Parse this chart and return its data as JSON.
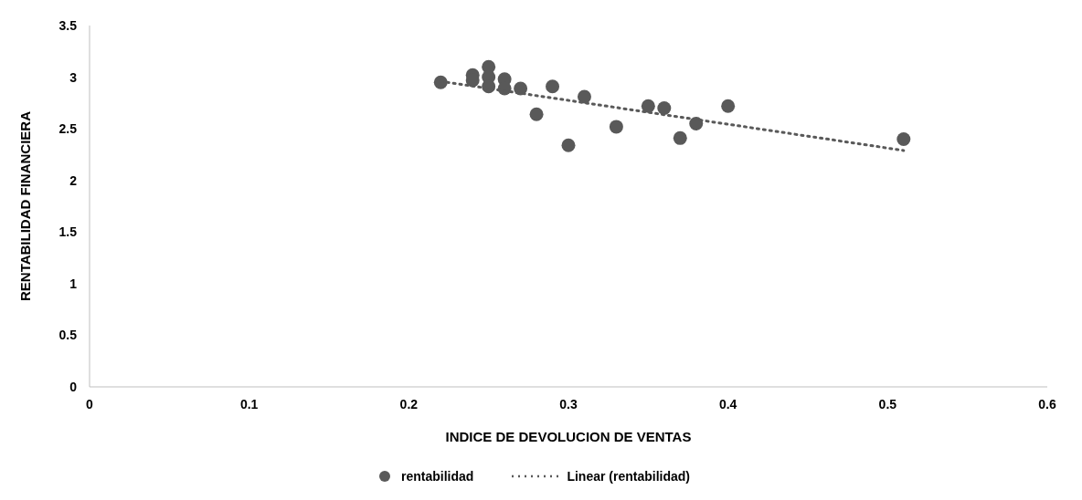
{
  "chart_data": {
    "type": "scatter",
    "xlabel": "INDICE DE DEVOLUCION DE VENTAS",
    "ylabel": "RENTABILIDAD FINANCIERA",
    "xlim": [
      0,
      0.6
    ],
    "xticks": [
      0,
      0.1,
      0.2,
      0.3,
      0.4,
      0.5,
      0.6
    ],
    "ylim": [
      0,
      3.5
    ],
    "yticks": [
      0,
      0.5,
      1,
      1.5,
      2,
      2.5,
      3,
      3.5
    ],
    "grid": false,
    "legend": "bottom",
    "series": [
      {
        "name": "rentabilidad",
        "marker": "circle",
        "color": "#595959",
        "x": [
          0.22,
          0.24,
          0.24,
          0.25,
          0.25,
          0.25,
          0.26,
          0.26,
          0.27,
          0.28,
          0.29,
          0.3,
          0.31,
          0.33,
          0.35,
          0.36,
          0.37,
          0.38,
          0.4,
          0.51
        ],
        "values": [
          2.95,
          3.02,
          2.97,
          3.1,
          3.0,
          2.91,
          2.98,
          2.89,
          2.89,
          2.64,
          2.91,
          2.34,
          2.81,
          2.52,
          2.72,
          2.7,
          2.41,
          2.55,
          2.72,
          2.4
        ]
      },
      {
        "name": "Linear (rentabilidad)",
        "type": "line",
        "color": "#595959",
        "line_style": "dotted",
        "x": [
          0.22,
          0.51
        ],
        "values": [
          2.96,
          2.29
        ]
      }
    ]
  }
}
